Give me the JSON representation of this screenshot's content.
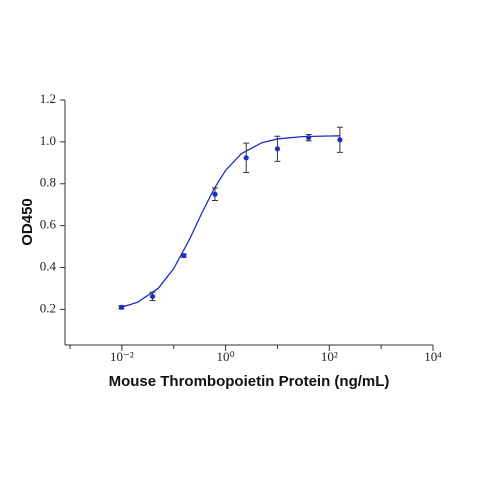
{
  "chart_data": {
    "type": "scatter",
    "x_label": "Mouse Thrombopoietin Protein (ng/mL)",
    "y_label": "OD450",
    "log_x": true,
    "color": "#1f2fbf",
    "x": [
      0.0098,
      0.039,
      0.156,
      0.625,
      2.5,
      10,
      40,
      160
    ],
    "values": [
      0.21,
      0.262,
      0.457,
      0.75,
      0.924,
      0.967,
      1.02,
      1.01
    ],
    "errors": [
      0.008,
      0.02,
      0.008,
      0.03,
      0.07,
      0.06,
      0.015,
      0.06
    ],
    "fit_curve": {
      "x": [
        0.01,
        0.02,
        0.05,
        0.1,
        0.2,
        0.35,
        0.6,
        1,
        2,
        5,
        10,
        30,
        100,
        160
      ],
      "values": [
        0.211,
        0.234,
        0.3,
        0.395,
        0.533,
        0.661,
        0.776,
        0.864,
        0.943,
        0.996,
        1.014,
        1.025,
        1.028,
        1.029
      ]
    },
    "xlim": [
      0.0008,
      10000
    ],
    "xticks": [
      {
        "value": 0.01,
        "label": "10⁻²"
      },
      {
        "value": 1,
        "label": "10⁰"
      },
      {
        "value": 100,
        "label": "10²"
      },
      {
        "value": 10000,
        "label": "10⁴"
      }
    ],
    "minor_xticks": [
      0.001,
      0.1,
      10,
      1000
    ],
    "ylim": [
      0.03,
      1.2
    ],
    "yticks": [
      0.2,
      0.4,
      0.6,
      0.8,
      {
        "value": 1.0,
        "label": "1.0"
      },
      1.2
    ]
  }
}
